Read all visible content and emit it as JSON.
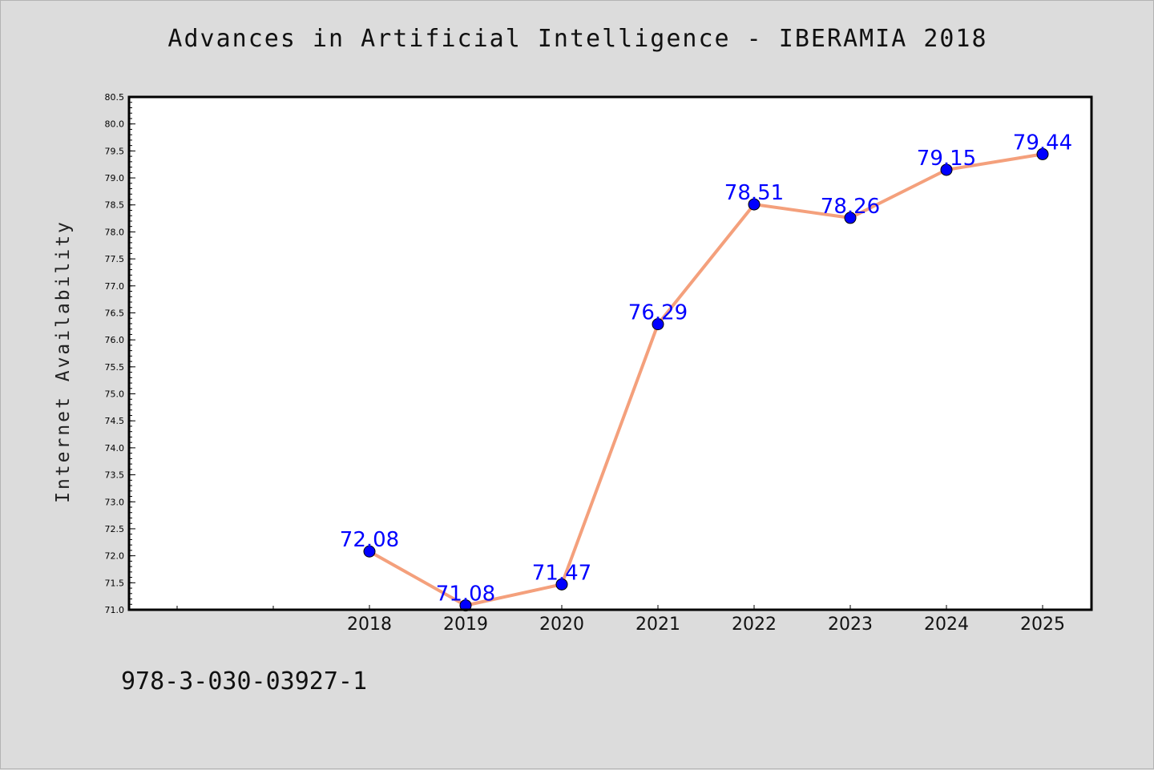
{
  "page": {
    "title": "Advances in Artificial Intelligence - IBERAMIA 2018",
    "footer_code": "978-3-030-03927-1"
  },
  "chart_data": {
    "type": "line",
    "title": "Advances in Artificial Intelligence - IBERAMIA 2018",
    "xlabel": "",
    "ylabel": "Internet Availability",
    "categories": [
      "2018",
      "2019",
      "2020",
      "2021",
      "2022",
      "2023",
      "2024",
      "2025"
    ],
    "series": [
      {
        "values": [
          72.08,
          71.08,
          71.47,
          76.29,
          78.51,
          78.26,
          79.15,
          79.44
        ]
      }
    ],
    "data_labels": [
      "72.08",
      "71.08",
      "71.47",
      "76.29",
      "78.51",
      "78.26",
      "79.15",
      "79.44"
    ],
    "ylim": [
      71.0,
      80.5
    ],
    "y_ticks": [
      "71.0",
      "71.5",
      "72.0",
      "72.5",
      "73.0",
      "73.5",
      "74.0",
      "74.5",
      "75.0",
      "75.5",
      "76.0",
      "76.5",
      "77.0",
      "77.5",
      "78.0",
      "78.5",
      "79.0",
      "79.5",
      "80.0",
      "80.5"
    ],
    "grid": false,
    "legend": "none",
    "colors": {
      "line": "#f4a07c",
      "marker": "#0000ff",
      "label": "#0000ff",
      "background": "#dcdcdc",
      "plot_background": "#ffffff"
    }
  }
}
